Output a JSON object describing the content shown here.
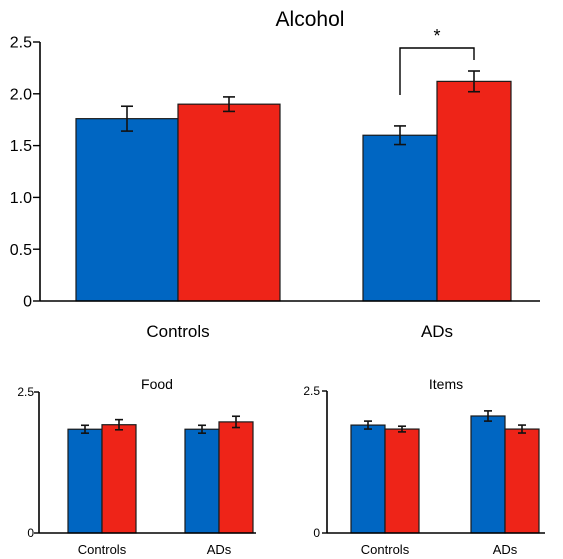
{
  "chart_data": [
    {
      "type": "bar",
      "title": "Alcohol",
      "categories": [
        "Controls",
        "ADs"
      ],
      "series": [
        {
          "values": [
            1.76,
            1.6
          ],
          "errors": [
            0.12,
            0.09
          ],
          "color": "#0066c2"
        },
        {
          "values": [
            1.9,
            2.12
          ],
          "errors": [
            0.07,
            0.1
          ],
          "color": "#ee2418"
        }
      ],
      "ylim": [
        0,
        2.5
      ],
      "yticks": [
        0,
        0.5,
        1.0,
        1.5,
        2.0,
        2.5
      ],
      "ytick_labels": [
        "0",
        "0.5",
        "1.0",
        "1.5",
        "2.0",
        "2.5"
      ],
      "annotations": [
        {
          "text": "*",
          "between": "ADs"
        }
      ]
    },
    {
      "type": "bar",
      "title": "Food",
      "categories": [
        "Controls",
        "ADs"
      ],
      "series": [
        {
          "values": [
            1.84,
            1.84
          ],
          "errors": [
            0.07,
            0.07
          ],
          "color": "#0066c2"
        },
        {
          "values": [
            1.92,
            1.97
          ],
          "errors": [
            0.09,
            0.1
          ],
          "color": "#ee2418"
        }
      ],
      "ylim": [
        0,
        2.5
      ],
      "yticks": [
        0,
        2.5
      ],
      "ytick_labels": [
        "0",
        "2.5"
      ]
    },
    {
      "type": "bar",
      "title": "Items",
      "categories": [
        "Controls",
        "ADs"
      ],
      "series": [
        {
          "values": [
            1.9,
            2.06
          ],
          "errors": [
            0.07,
            0.09
          ],
          "color": "#0066c2"
        },
        {
          "values": [
            1.83,
            1.83
          ],
          "errors": [
            0.05,
            0.07
          ],
          "color": "#ee2418"
        }
      ],
      "ylim": [
        0,
        2.5
      ],
      "yticks": [
        0,
        2.5
      ],
      "ytick_labels": [
        "0",
        "2.5"
      ]
    }
  ]
}
